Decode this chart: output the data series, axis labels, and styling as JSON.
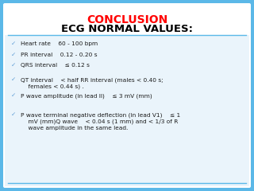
{
  "title1": "CONCLUSION",
  "title2": "ECG NORMAL VALUES:",
  "title1_color": "#FF0000",
  "title2_color": "#000000",
  "bg_color": "#FFFFFF",
  "border_color": "#5BB8E8",
  "content_bg": "#EAF4FB",
  "bullet_color": "#5B9BD5",
  "text_color": "#1A1A1A",
  "bullets": [
    "Heart rate    60 - 100 bpm",
    "PR interval    0.12 - 0.20 s",
    "QRS interval    ≤ 0.12 s",
    "QT interval    < half RR interval (males < 0.40 s;\n    females < 0.44 s) .",
    "P wave amplitude (in lead II)    ≤ 3 mV (mm)",
    "P wave terminal negative deflection (in lead V1)    ≤ 1\n    mV (mm)Q wave    < 0.04 s (1 mm) and < 1/3 of R\n    wave amplitude in the same lead."
  ]
}
